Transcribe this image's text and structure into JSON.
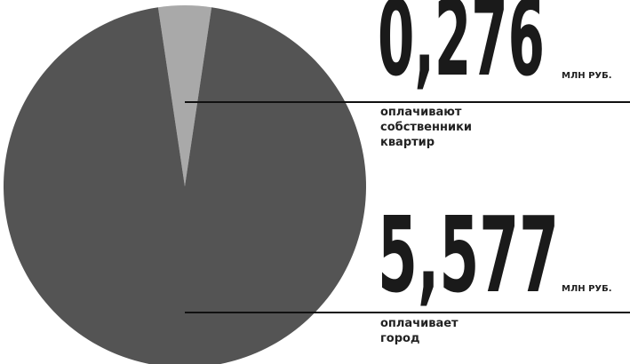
{
  "chart_data": {
    "type": "pie",
    "categories": [
      "оплачивают собственники квартир",
      "оплачивает город"
    ],
    "values": [
      0.276,
      5.577
    ],
    "value_labels": [
      "0,276",
      "5,577"
    ],
    "unit": "МЛН РУБ.",
    "colors": [
      "#a9a9a9",
      "#545454"
    ]
  }
}
